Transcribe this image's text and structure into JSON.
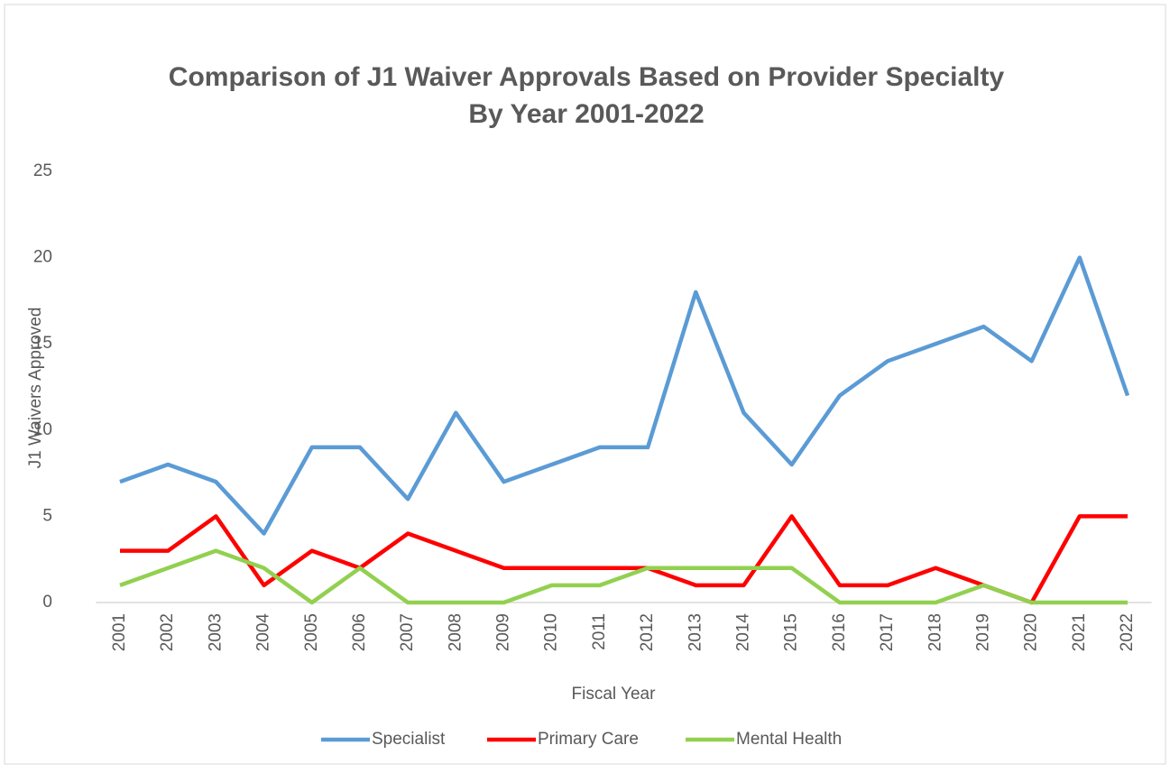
{
  "chart_data": {
    "type": "line",
    "title": [
      "Comparison of J1 Waiver Approvals Based on Provider Specialty",
      "By Year 2001-2022"
    ],
    "x_label": "Fiscal Year",
    "y_label": "J1 Waivers Approved",
    "categories": [
      "2001",
      "2002",
      "2003",
      "2004",
      "2005",
      "2006",
      "2007",
      "2008",
      "2009",
      "2010",
      "2011",
      "2012",
      "2013",
      "2014",
      "2015",
      "2016",
      "2017",
      "2018",
      "2019",
      "2020",
      "2021",
      "2022"
    ],
    "series": [
      {
        "name": "Specialist",
        "color": "#5b9bd5",
        "values": [
          7,
          8,
          7,
          4,
          9,
          9,
          6,
          11,
          7,
          8,
          9,
          9,
          18,
          11,
          8,
          12,
          14,
          15,
          16,
          14,
          20,
          12
        ]
      },
      {
        "name": "Primary Care",
        "color": "#ff0000",
        "values": [
          3,
          3,
          5,
          1,
          3,
          2,
          4,
          3,
          2,
          2,
          2,
          2,
          1,
          1,
          5,
          1,
          1,
          2,
          1,
          0,
          5,
          5
        ]
      },
      {
        "name": "Mental Health",
        "color": "#92d050",
        "values": [
          1,
          2,
          3,
          2,
          0,
          2,
          0,
          0,
          0,
          1,
          1,
          2,
          2,
          2,
          2,
          0,
          0,
          0,
          1,
          0,
          0,
          0
        ]
      }
    ],
    "ylim": [
      0,
      25
    ],
    "yticks": [
      0,
      5,
      10,
      15,
      20,
      25
    ],
    "grid": false,
    "legend": "bottom"
  }
}
